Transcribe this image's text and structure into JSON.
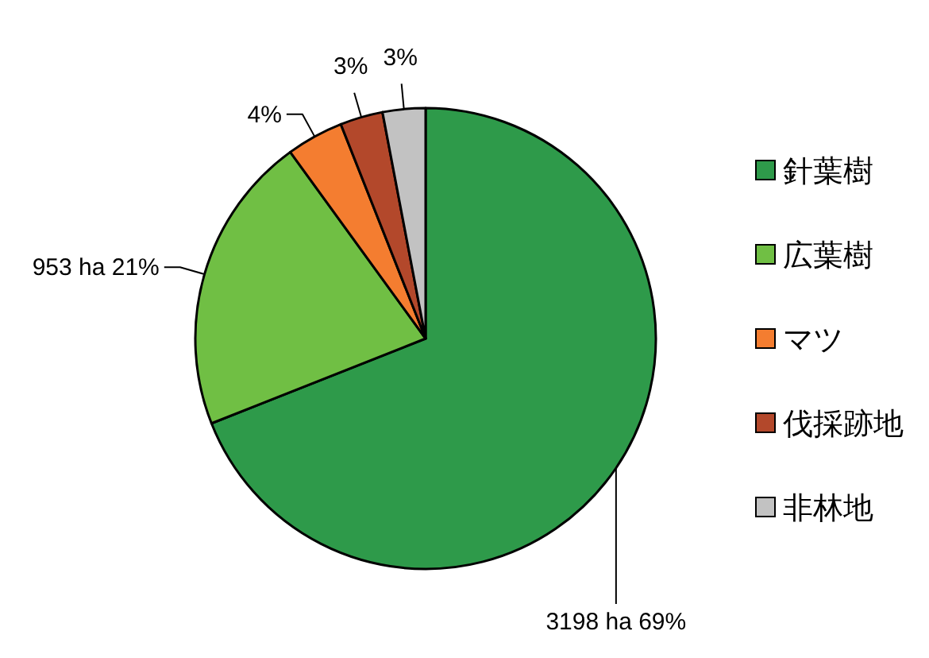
{
  "chart_data": {
    "type": "pie",
    "categories": [
      "針葉樹",
      "広葉樹",
      "マツ",
      "伐採跡地",
      "非林地"
    ],
    "values": [
      69,
      21,
      4,
      3,
      3
    ],
    "colors": [
      "#2e9a4a",
      "#70bf44",
      "#f47d30",
      "#b3482b",
      "#c2c2c2"
    ],
    "value_labels": [
      "3198 ha  69%",
      "953 ha 21%",
      "4%",
      "3%",
      "3%"
    ],
    "legend": "right"
  }
}
